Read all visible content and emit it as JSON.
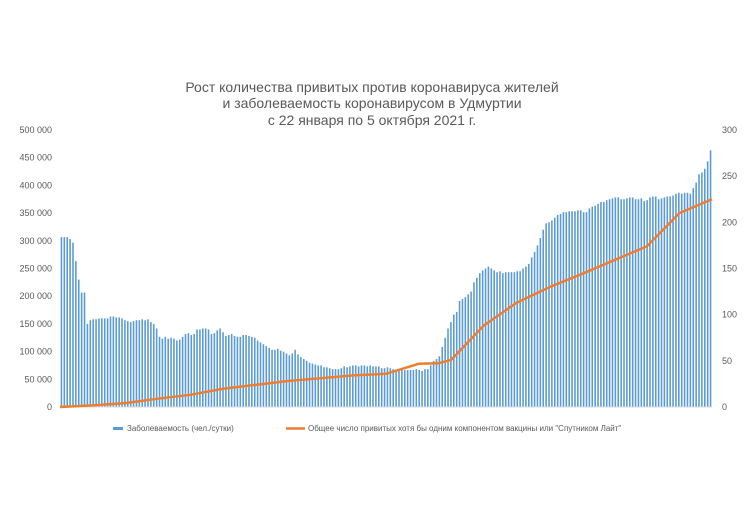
{
  "chart_data": {
    "type": "bar+line",
    "title_lines": [
      "Рост количества привитых против коронавируса жителей",
      "и заболеваемость коронавирусом в Удмуртии",
      "с 22 января по 5 октября 2021 г."
    ],
    "y_left": {
      "min": 0,
      "max": 500000,
      "ticks": [
        0,
        50000,
        100000,
        150000,
        200000,
        250000,
        300000,
        350000,
        400000,
        450000,
        500000
      ],
      "tick_labels": [
        "0",
        "50 000",
        "100 000",
        "150 000",
        "200 000",
        "250 000",
        "300 000",
        "350 000",
        "400 000",
        "450 000",
        "500 000"
      ]
    },
    "y_right": {
      "min": 0,
      "max": 300,
      "ticks": [
        0,
        50,
        100,
        150,
        200,
        250,
        300
      ],
      "tick_labels": [
        "0",
        "50",
        "100",
        "150",
        "200",
        "250",
        "300"
      ]
    },
    "series": [
      {
        "name": "Заболеваемость (чел./сутки)",
        "type": "bar",
        "axis": "right",
        "color": "#5b9bd5",
        "values": [
          184,
          184,
          184,
          182,
          178,
          158,
          138,
          124,
          124,
          90,
          94,
          95,
          95,
          96,
          96,
          96,
          96,
          98,
          98,
          97,
          97,
          96,
          94,
          93,
          92,
          93,
          94,
          94,
          95,
          94,
          95,
          92,
          90,
          85,
          76,
          74,
          76,
          74,
          75,
          74,
          72,
          73,
          76,
          79,
          80,
          78,
          79,
          84,
          84,
          85,
          85,
          84,
          79,
          80,
          83,
          85,
          81,
          77,
          78,
          79,
          77,
          76,
          76,
          78,
          78,
          77,
          76,
          75,
          72,
          70,
          68,
          66,
          64,
          62,
          62,
          63,
          61,
          60,
          58,
          56,
          58,
          62,
          57,
          54,
          52,
          50,
          48,
          47,
          46,
          45,
          45,
          43,
          43,
          42,
          41,
          41,
          41,
          42,
          44,
          43,
          44,
          45,
          45,
          44,
          45,
          45,
          44,
          45,
          44,
          44,
          44,
          42,
          42,
          43,
          42,
          41,
          40,
          41,
          41,
          40,
          40,
          40,
          40,
          41,
          40,
          39,
          41,
          41,
          45,
          50,
          52,
          55,
          65,
          75,
          85,
          92,
          100,
          103,
          115,
          117,
          119,
          122,
          125,
          135,
          140,
          145,
          148,
          150,
          152,
          150,
          148,
          146,
          147,
          145,
          146,
          146,
          146,
          146,
          147,
          147,
          150,
          152,
          155,
          162,
          168,
          175,
          183,
          192,
          199,
          200,
          202,
          205,
          208,
          209,
          211,
          211,
          212,
          212,
          212,
          213,
          213,
          211,
          211,
          215,
          217,
          218,
          220,
          222,
          222,
          224,
          225,
          226,
          227,
          227,
          225,
          225,
          226,
          227,
          227,
          225,
          225,
          226,
          223,
          224,
          227,
          228,
          228,
          225,
          226,
          227,
          228,
          228,
          229,
          231,
          232,
          231,
          232,
          232,
          231,
          237,
          243,
          252,
          254,
          258,
          266,
          278
        ]
      },
      {
        "name": "Общее число привитых хотя бы одним компонентом вакцины или \"Спутником Лайт\"",
        "type": "line",
        "axis": "left",
        "color": "#ed7d31",
        "x": [
          0,
          0.05,
          0.1,
          0.15,
          0.2,
          0.25,
          0.3,
          0.35,
          0.4,
          0.45,
          0.5,
          0.55,
          0.58,
          0.6,
          0.65,
          0.7,
          0.75,
          0.8,
          0.85,
          0.9,
          0.95,
          1.0
        ],
        "values": [
          0,
          3000,
          7000,
          15000,
          22000,
          33000,
          40000,
          47000,
          52000,
          57000,
          60000,
          78000,
          79000,
          85000,
          147000,
          188000,
          216000,
          240000,
          265000,
          290000,
          350000,
          375000
        ]
      }
    ],
    "legend_position": "bottom",
    "grid": false
  }
}
